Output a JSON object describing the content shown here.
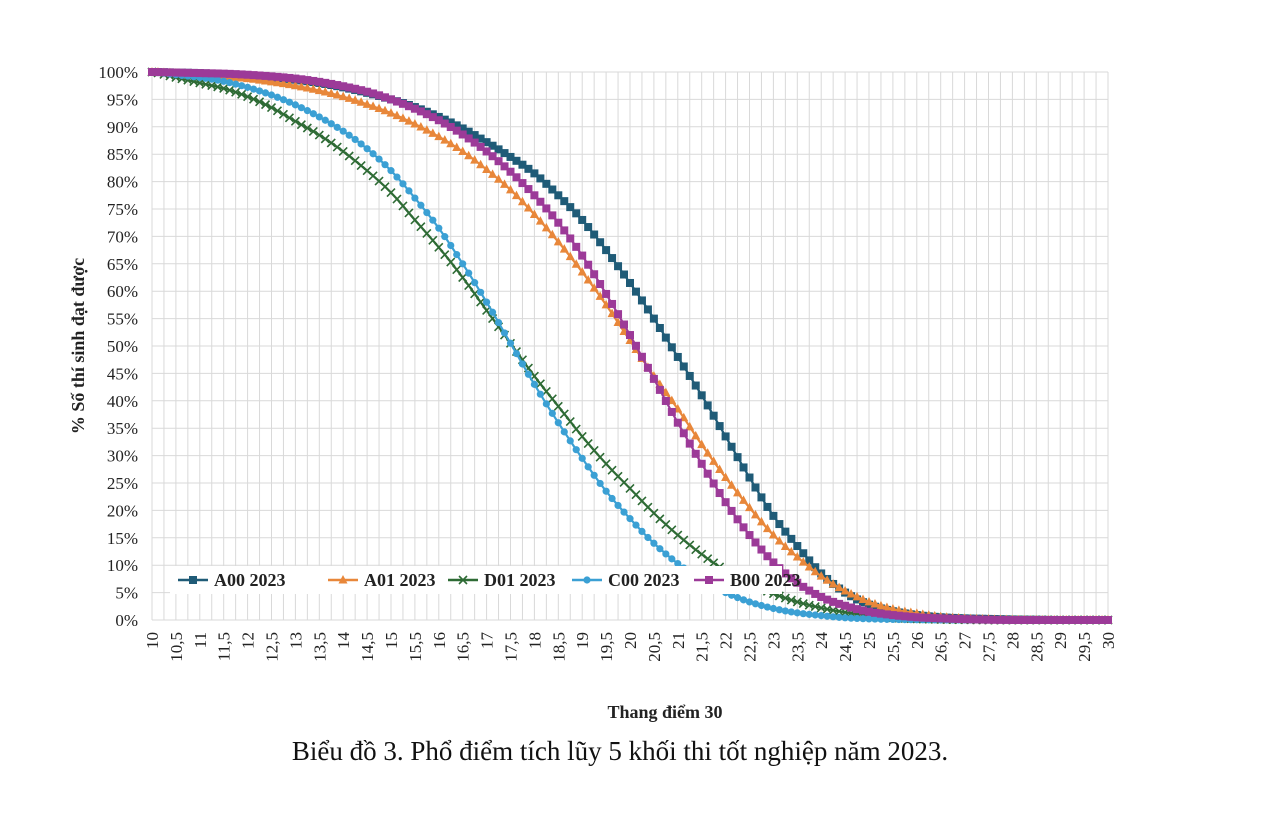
{
  "caption": "Biểu đồ 3. Phổ điểm tích lũy 5 khối thi tốt nghiệp năm 2023.",
  "chart_data": {
    "type": "line",
    "title": "",
    "xlabel": "Thang điểm 30",
    "ylabel": "% Số thí sinh đạt được",
    "xlim": [
      10,
      30
    ],
    "ylim": [
      0,
      100
    ],
    "x_ticks": [
      "10",
      "10,5",
      "11",
      "11,5",
      "12",
      "12,5",
      "13",
      "13,5",
      "14",
      "14,5",
      "15",
      "15,5",
      "16",
      "16,5",
      "17",
      "17,5",
      "18",
      "18,5",
      "19",
      "19,5",
      "20",
      "20,5",
      "21",
      "21,5",
      "22",
      "22,5",
      "23",
      "23,5",
      "24",
      "24,5",
      "25",
      "25,5",
      "26",
      "26,5",
      "27",
      "27,5",
      "28",
      "28,5",
      "29",
      "29,5",
      "30"
    ],
    "y_ticks": [
      "0%",
      "5%",
      "10%",
      "15%",
      "20%",
      "25%",
      "30%",
      "35%",
      "40%",
      "45%",
      "50%",
      "55%",
      "60%",
      "65%",
      "70%",
      "75%",
      "80%",
      "85%",
      "90%",
      "95%",
      "100%"
    ],
    "grid": true,
    "legend_position": "bottom-left",
    "x": [
      10,
      10.5,
      11,
      11.5,
      12,
      12.5,
      13,
      13.5,
      14,
      14.5,
      15,
      15.5,
      16,
      16.5,
      17,
      17.5,
      18,
      18.5,
      19,
      19.5,
      20,
      20.5,
      21,
      21.5,
      22,
      22.5,
      23,
      23.5,
      24,
      24.5,
      25,
      25.5,
      26,
      26.5,
      27,
      27.5,
      28,
      28.5,
      29,
      29.5,
      30
    ],
    "series": [
      {
        "name": "A00 2023",
        "color": "#1f5b77",
        "marker": "square",
        "values": [
          100,
          99.9,
          99.8,
          99.6,
          99.4,
          99.1,
          98.6,
          98,
          97.2,
          96.2,
          95,
          93.6,
          91.8,
          89.7,
          87.2,
          84.5,
          81.5,
          77.5,
          73,
          67.5,
          61.5,
          55,
          48,
          41,
          33.5,
          26,
          19,
          13.5,
          8.5,
          5,
          2.8,
          1.6,
          0.9,
          0.5,
          0.3,
          0.2,
          0.1,
          0.05,
          0,
          0,
          0
        ]
      },
      {
        "name": "A01 2023",
        "color": "#e8873a",
        "marker": "triangle",
        "values": [
          100,
          99.8,
          99.5,
          99.2,
          98.8,
          98.2,
          97.5,
          96.6,
          95.5,
          94.1,
          92.5,
          90.5,
          88.2,
          85.5,
          82.2,
          78.5,
          74,
          69,
          63.5,
          57.5,
          51,
          44.5,
          38.5,
          32,
          26,
          20.5,
          15.5,
          11.5,
          8,
          5.3,
          3.3,
          2,
          1.2,
          0.6,
          0.3,
          0.15,
          0.05,
          0,
          0,
          0,
          0
        ]
      },
      {
        "name": "D01 2023",
        "color": "#2e6b35",
        "marker": "x",
        "values": [
          100,
          99,
          98,
          97,
          95.5,
          93.5,
          91,
          88.5,
          85.5,
          82,
          78,
          73,
          68,
          62.5,
          56.5,
          50.5,
          44.5,
          39,
          33.5,
          28.5,
          24,
          19.5,
          15.5,
          12,
          9,
          6.7,
          4.8,
          3.3,
          2.2,
          1.4,
          0.8,
          0.4,
          0.2,
          0.1,
          0.05,
          0,
          0,
          0,
          0,
          0,
          0
        ]
      },
      {
        "name": "C00 2023",
        "color": "#3ba0d4",
        "marker": "circle",
        "values": [
          100,
          99.5,
          99,
          98.3,
          97.2,
          95.8,
          94,
          91.8,
          89.2,
          86,
          82,
          77,
          71.5,
          65,
          58,
          50.5,
          43,
          36,
          29.5,
          23.5,
          18.5,
          14,
          10.3,
          7.3,
          5,
          3.3,
          2.1,
          1.3,
          0.8,
          0.4,
          0.2,
          0.1,
          0.05,
          0,
          0,
          0,
          0,
          0,
          0,
          0,
          0
        ]
      },
      {
        "name": "B00 2023",
        "color": "#9c3a98",
        "marker": "square",
        "values": [
          100,
          99.9,
          99.8,
          99.7,
          99.5,
          99.2,
          98.8,
          98.2,
          97.4,
          96.4,
          95,
          93.3,
          91.2,
          88.6,
          85.5,
          81.8,
          77.5,
          72.5,
          66.5,
          59.5,
          52,
          44,
          36,
          28.5,
          21.5,
          15.5,
          10.5,
          6.8,
          4.2,
          2.6,
          1.5,
          0.9,
          0.5,
          0.3,
          0.15,
          0.05,
          0,
          0,
          0,
          0,
          0
        ]
      }
    ]
  }
}
